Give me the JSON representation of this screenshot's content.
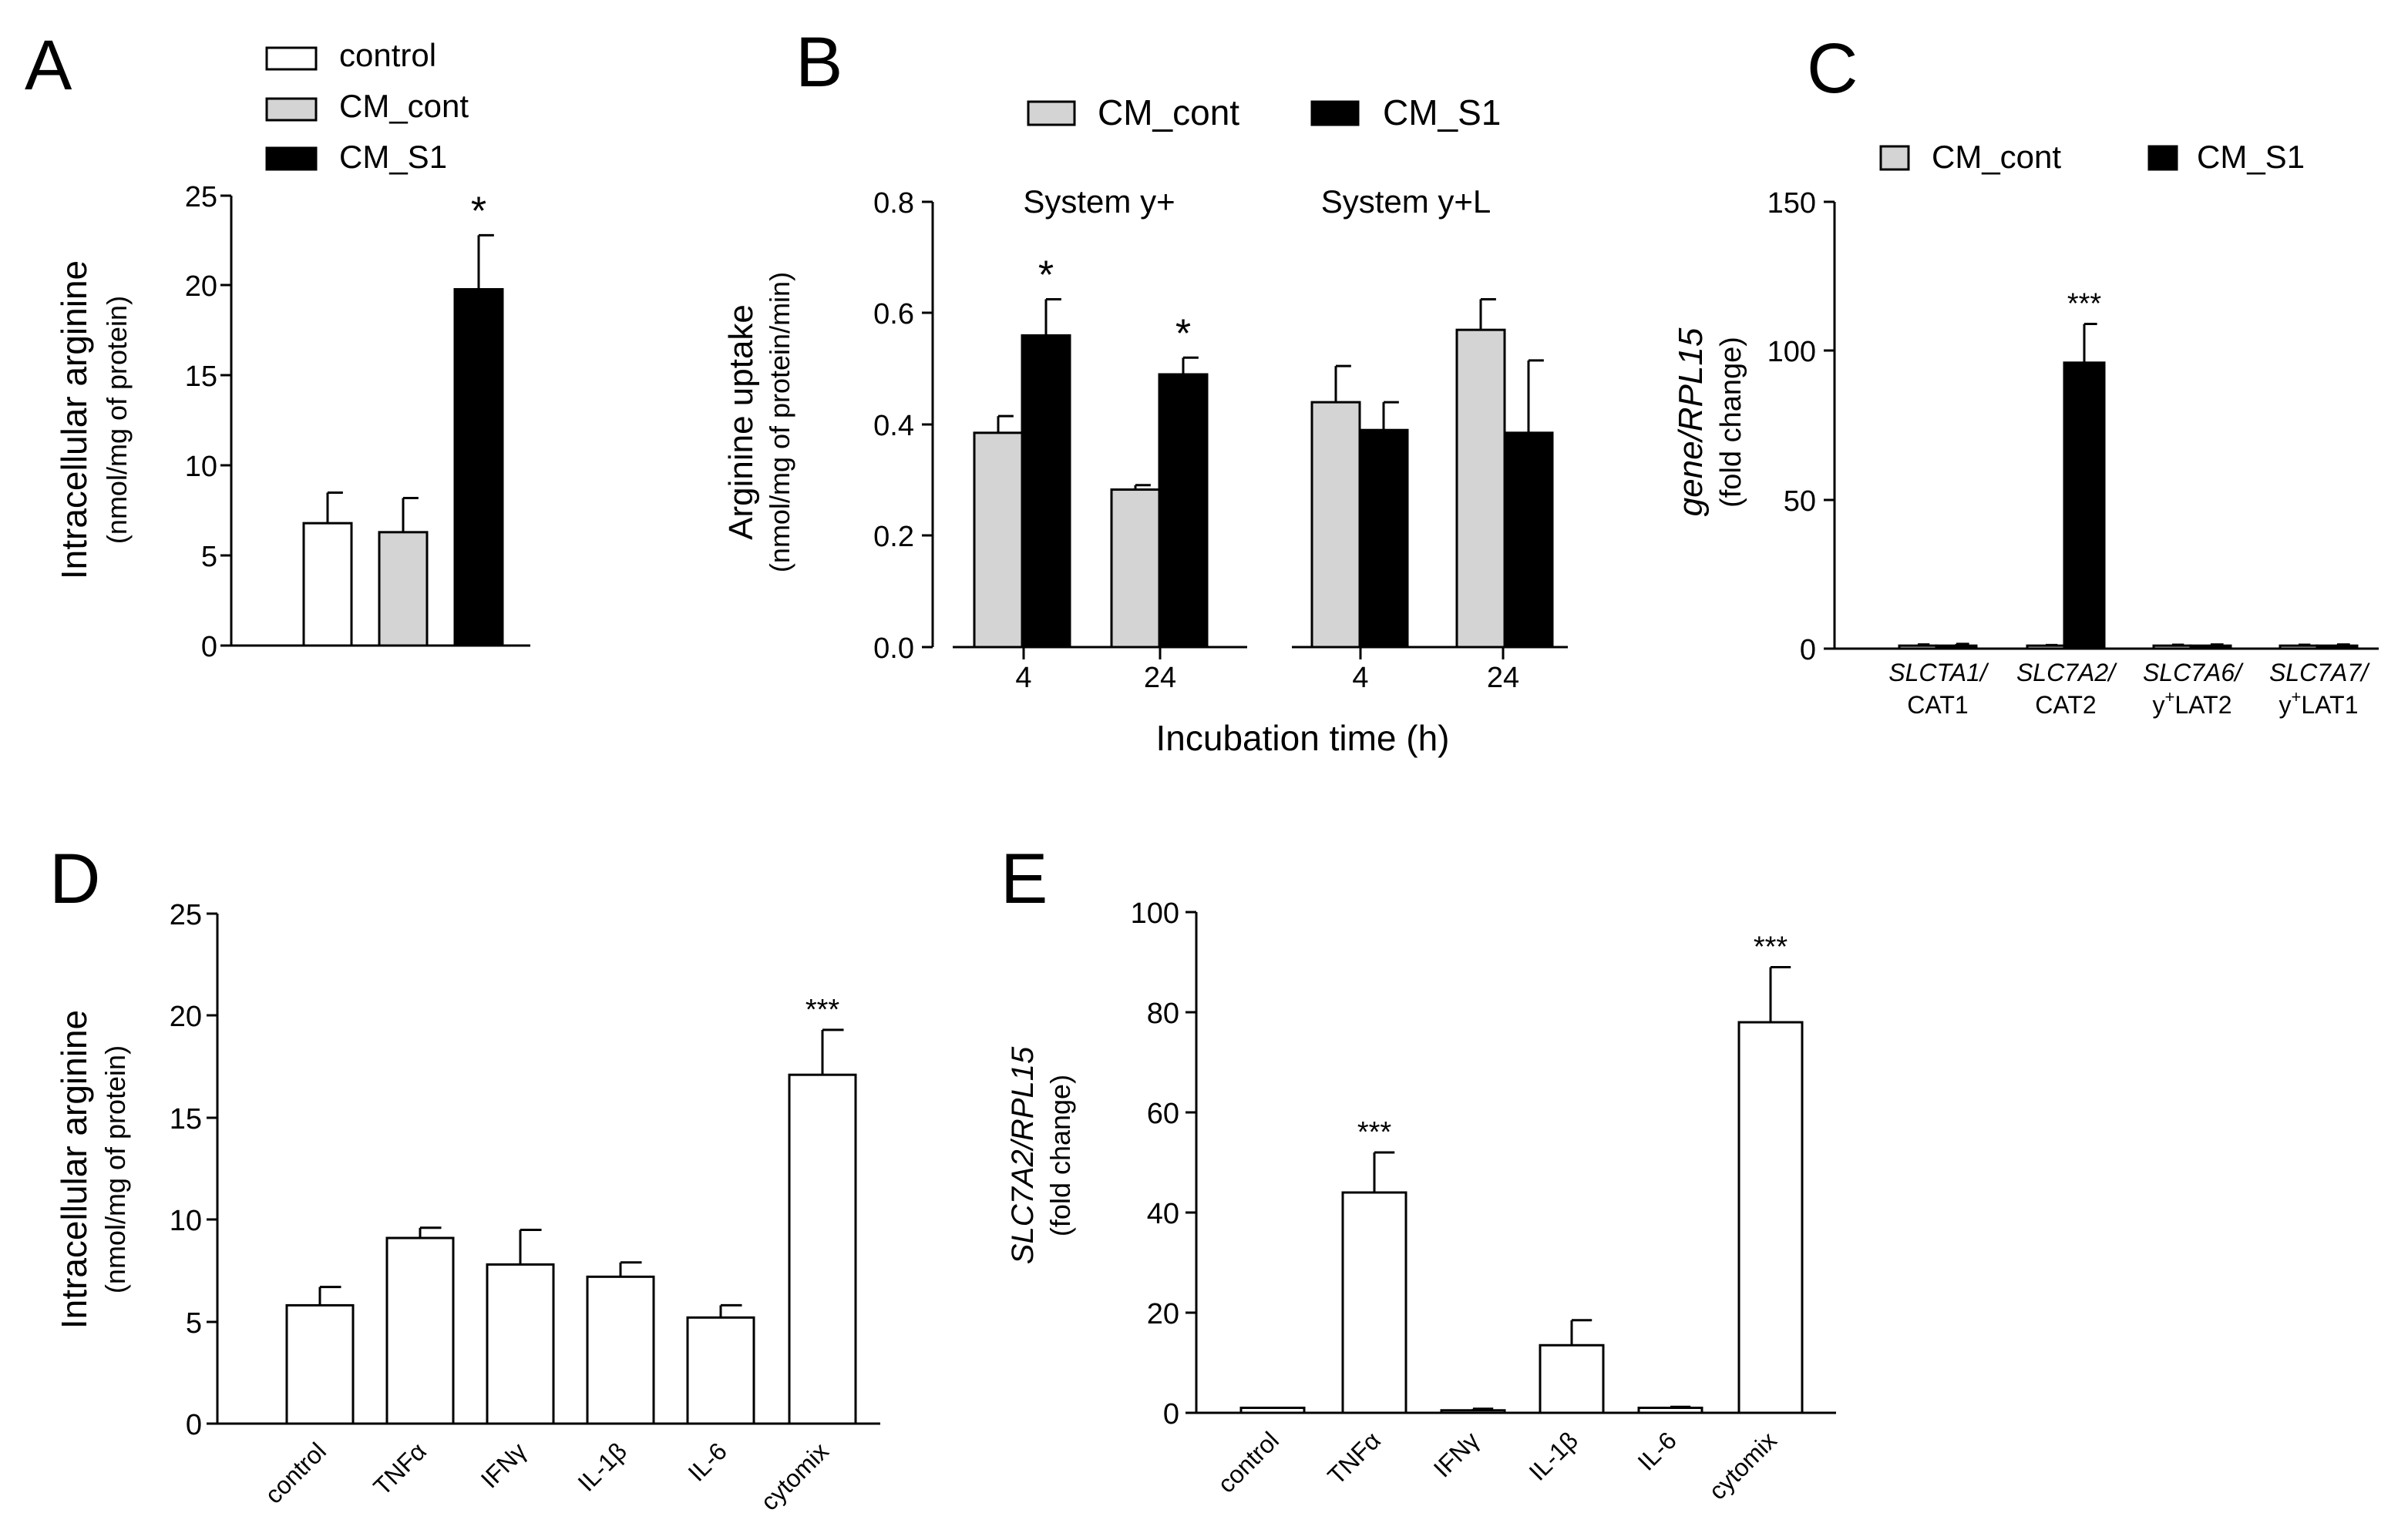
{
  "colors": {
    "control": "#ffffff",
    "cm_cont": "#d4d4d4",
    "cm_s1": "#000000",
    "stroke": "#000000"
  },
  "chart_data": [
    {
      "panel": "A",
      "type": "bar",
      "categories": [
        "control",
        "CM_cont",
        "CM_S1"
      ],
      "values": [
        6.8,
        6.3,
        19.8
      ],
      "errors": [
        1.7,
        1.9,
        3.0
      ],
      "significance": [
        "",
        "",
        "*"
      ],
      "legend": [
        "control",
        "CM_cont",
        "CM_S1"
      ],
      "ylabel": "Intracellular arginine",
      "ylabel_sub": "(nmol/mg of protein)",
      "ylim": [
        0,
        25
      ],
      "yticks": [
        "0",
        "5",
        "10",
        "15",
        "20",
        "25"
      ]
    },
    {
      "panel": "B",
      "type": "bar",
      "legend": [
        "CM_cont",
        "CM_S1"
      ],
      "groups": [
        {
          "title": "System y+",
          "categories": [
            "4",
            "24"
          ],
          "series": [
            {
              "name": "CM_cont",
              "values": [
                0.385,
                0.283
              ],
              "errors": [
                0.03,
                0.008
              ]
            },
            {
              "name": "CM_S1",
              "values": [
                0.56,
                0.49
              ],
              "errors": [
                0.065,
                0.03
              ]
            }
          ],
          "significance": [
            "*",
            "*"
          ]
        },
        {
          "title": "System y+L",
          "categories": [
            "4",
            "24"
          ],
          "series": [
            {
              "name": "CM_cont",
              "values": [
                0.44,
                0.57
              ],
              "errors": [
                0.065,
                0.055
              ]
            },
            {
              "name": "CM_S1",
              "values": [
                0.39,
                0.385
              ],
              "errors": [
                0.05,
                0.13
              ]
            }
          ],
          "significance": [
            "",
            ""
          ]
        }
      ],
      "xlabel": "Incubation time (h)",
      "ylabel": "Arginine uptake",
      "ylabel_sub": "(nmol/mg of protein/min)",
      "ylim": [
        0,
        0.8
      ],
      "yticks": [
        "0.0",
        "0.2",
        "0.4",
        "0.6",
        "0.8"
      ]
    },
    {
      "panel": "C",
      "type": "bar",
      "legend": [
        "CM_cont",
        "CM_S1"
      ],
      "categories": [
        {
          "gene": "SLCTA1/",
          "protein": "CAT1"
        },
        {
          "gene": "SLC7A2/",
          "protein": "CAT2"
        },
        {
          "gene": "SLC7A6/",
          "protein_sup": "+",
          "protein_pre": "y",
          "protein_post": "LAT2"
        },
        {
          "gene": "SLC7A7/",
          "protein_sup": "+",
          "protein_pre": "y",
          "protein_post": "LAT1"
        }
      ],
      "series": [
        {
          "name": "CM_cont",
          "values": [
            1,
            1,
            1,
            1
          ],
          "errors": [
            0.4,
            0.2,
            0.3,
            0.3
          ]
        },
        {
          "name": "CM_S1",
          "values": [
            1,
            96,
            1,
            1
          ],
          "errors": [
            0.6,
            13,
            0.4,
            0.4
          ]
        }
      ],
      "significance": [
        "",
        "***",
        "",
        ""
      ],
      "ylabel": "gene/RPL15",
      "ylabel_sub": "(fold change)",
      "ylim": [
        0,
        150
      ],
      "yticks": [
        "0",
        "50",
        "100",
        "150"
      ]
    },
    {
      "panel": "D",
      "type": "bar",
      "categories": [
        "control",
        "TNFα",
        "IFNγ",
        "IL-1β",
        "IL-6",
        "cytomix"
      ],
      "values": [
        5.8,
        9.1,
        7.8,
        7.2,
        5.2,
        17.1
      ],
      "errors": [
        0.9,
        0.5,
        1.7,
        0.7,
        0.6,
        2.2
      ],
      "significance": [
        "",
        "",
        "",
        "",
        "",
        "***"
      ],
      "ylabel": "Intracellular arginine",
      "ylabel_sub": "(nmol/mg of protein)",
      "ylim": [
        0,
        25
      ],
      "yticks": [
        "0",
        "5",
        "10",
        "15",
        "20",
        "25"
      ]
    },
    {
      "panel": "E",
      "type": "bar",
      "categories": [
        "control",
        "TNFα",
        "IFNγ",
        "IL-1β",
        "IL-6",
        "cytomix"
      ],
      "values": [
        1,
        44,
        0.5,
        13.5,
        1,
        78
      ],
      "errors": [
        0,
        8,
        0.3,
        5,
        0.2,
        11
      ],
      "significance": [
        "",
        "***",
        "",
        "",
        "",
        "***"
      ],
      "ylabel": "SLC7A2/RPL15",
      "ylabel_sub": "(fold change)",
      "ylim": [
        0,
        100
      ],
      "yticks": [
        "0",
        "20",
        "40",
        "60",
        "80",
        "100"
      ]
    }
  ],
  "panel_labels": [
    "A",
    "B",
    "C",
    "D",
    "E"
  ]
}
